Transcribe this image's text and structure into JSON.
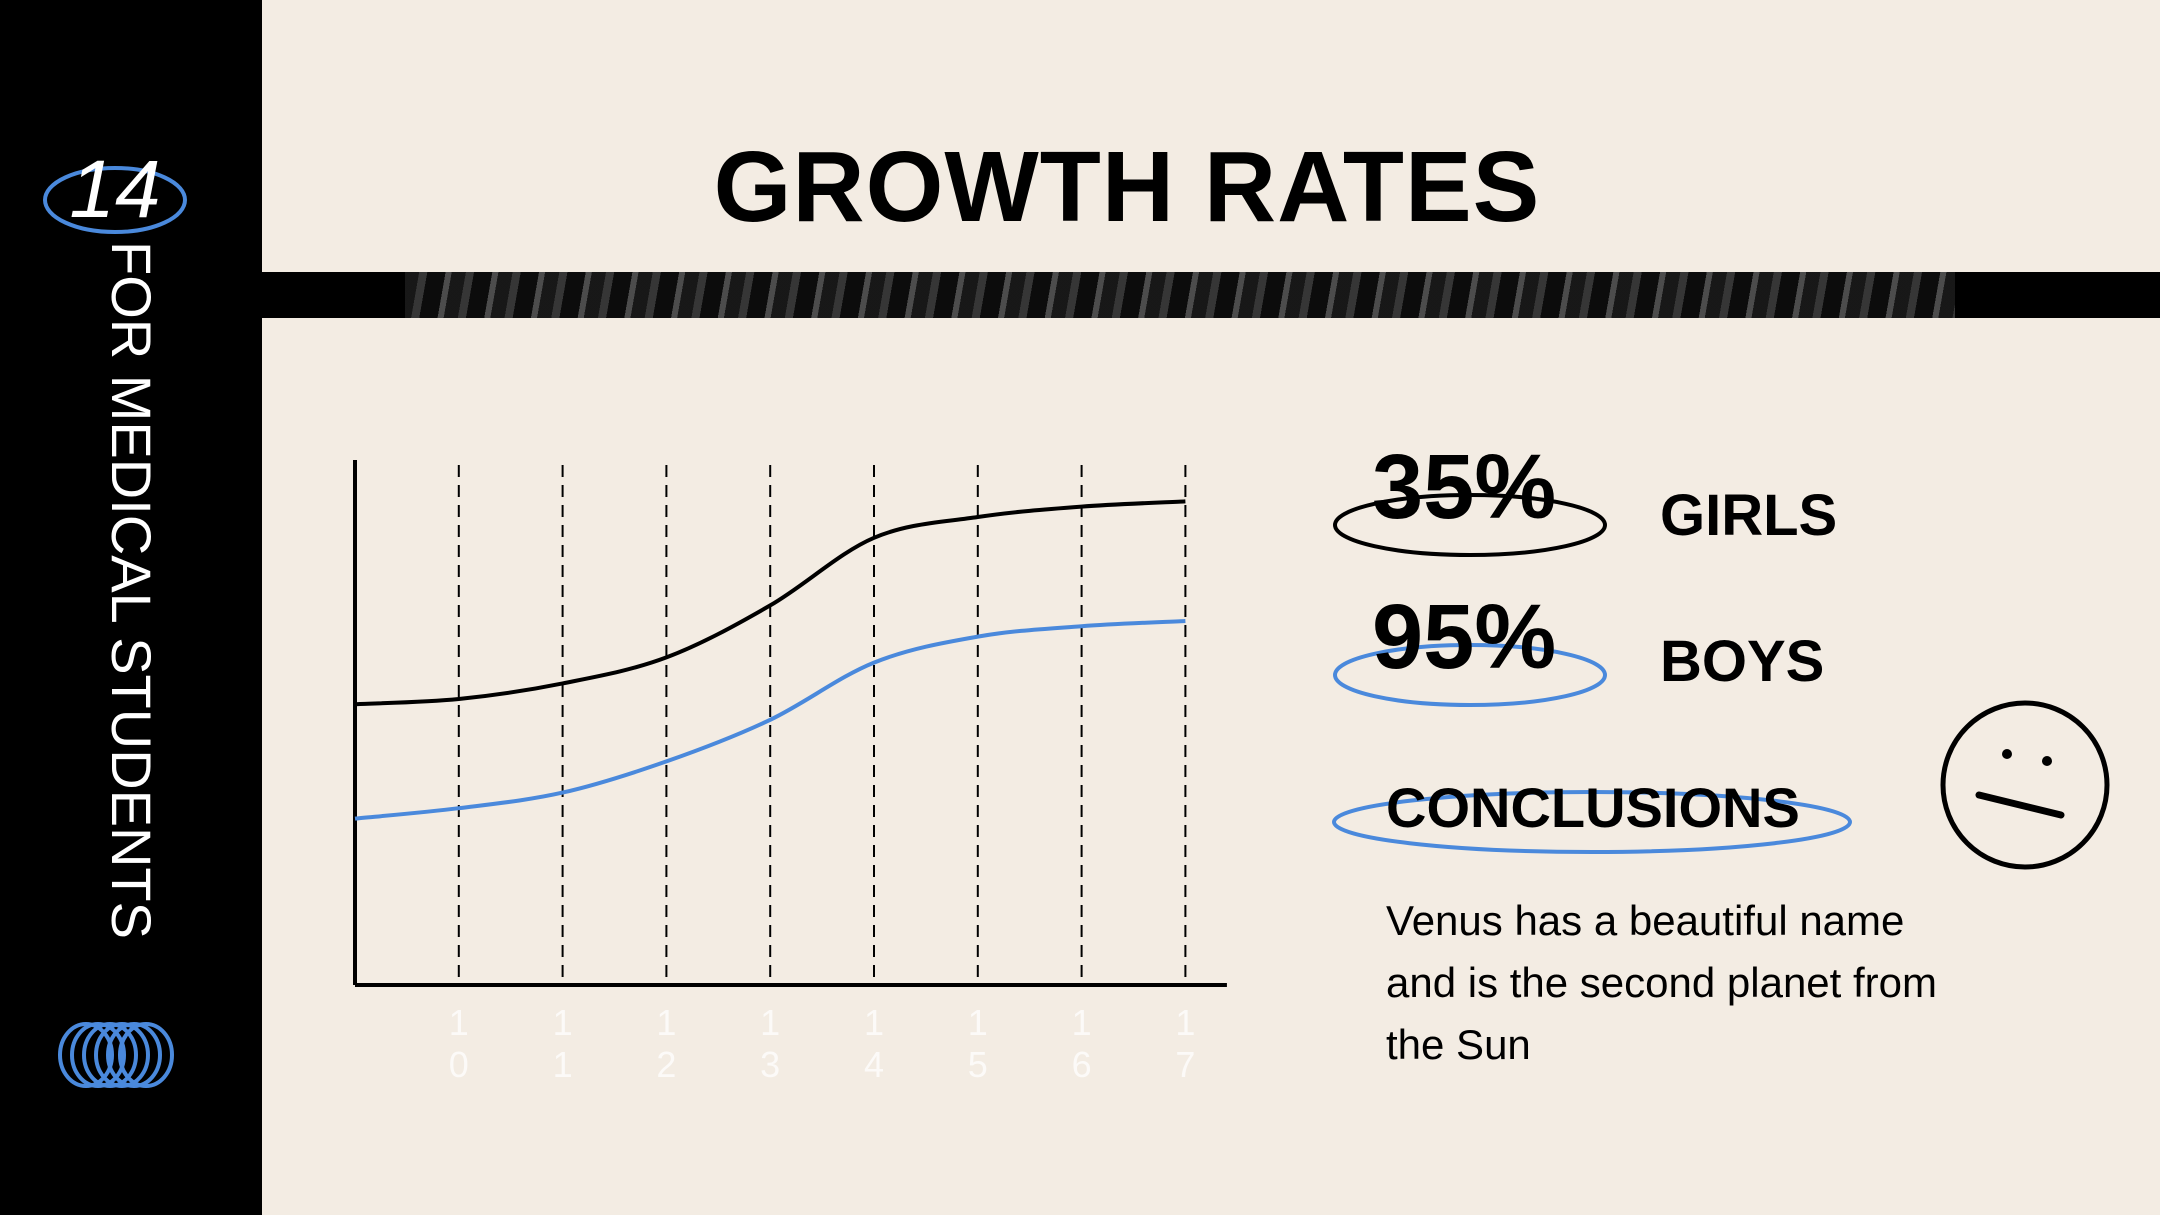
{
  "slide": {
    "page_number": "14",
    "sidebar_text": "FOR MEDICAL STUDENTS",
    "title": "GROWTH RATES"
  },
  "stats": [
    {
      "value": "35%",
      "label": "GIRLS",
      "ring_color": "#000000"
    },
    {
      "value": "95%",
      "label": "BOYS",
      "ring_color": "#4a89dc"
    }
  ],
  "conclusions": {
    "heading": "CONCLUSIONS",
    "text": "Venus has a beautiful name and is the second planet from the Sun"
  },
  "colors": {
    "accent": "#4a89dc",
    "background": "#f3ece3",
    "sidebar": "#000000"
  },
  "icons": [
    "ring-coil-icon",
    "neutral-face-icon"
  ],
  "chart_data": {
    "type": "line",
    "x": [
      9,
      10,
      11,
      12,
      13,
      14,
      15,
      16,
      17
    ],
    "tick_labels": [
      "10",
      "11",
      "12",
      "13",
      "14",
      "15",
      "16",
      "17"
    ],
    "series": [
      {
        "color": "#000000",
        "values": [
          46,
          45,
          42,
          37,
          27,
          14,
          10,
          8,
          7
        ]
      },
      {
        "color": "#4a89dc",
        "values": [
          68,
          66,
          63,
          57,
          49,
          38,
          33,
          31,
          30
        ]
      }
    ],
    "ylim": [
      0,
      100
    ],
    "grid": "vertical-dashed",
    "title": "",
    "xlabel": "",
    "ylabel": ""
  }
}
